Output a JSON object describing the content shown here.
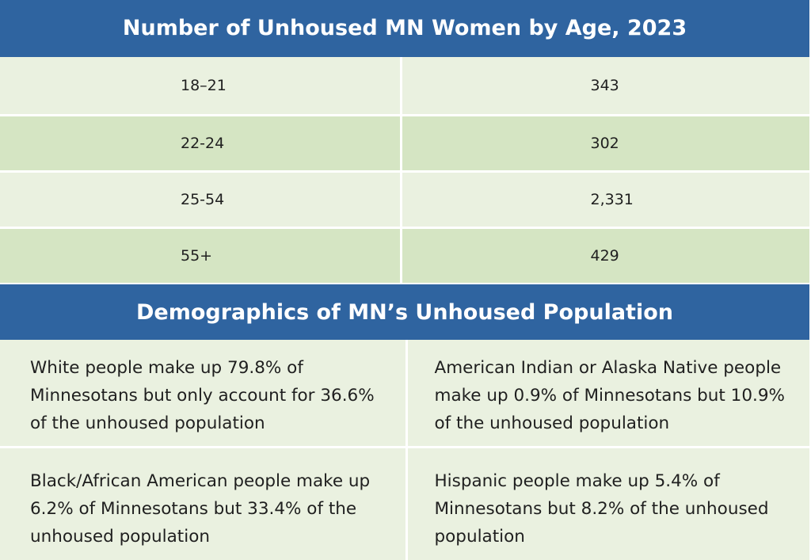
{
  "age_table": {
    "title": "Number of Unhoused MN Women by Age, 2023",
    "rows": [
      {
        "age": "18–21",
        "count": "343"
      },
      {
        "age": "22-24",
        "count": "302"
      },
      {
        "age": "25-54",
        "count": "2,331"
      },
      {
        "age": "55+",
        "count": "429"
      }
    ]
  },
  "demographics": {
    "title": "Demographics of MN’s Unhoused Population",
    "facts": [
      "White people make up 79.8% of Minnesotans but only account for 36.6% of the unhoused population",
      "American Indian or Alaska Native people make up 0.9% of Minnesotans but 10.9% of the unhoused population",
      "Black/African American people make up 6.2% of Minnesotans but 33.4% of the unhoused population",
      "Hispanic people make up 5.4% of Minnesotans but 8.2% of the unhoused population"
    ]
  },
  "colors": {
    "header_blue": "#2f64a0",
    "row_light": "#eaf1e0",
    "row_dark": "#d5e5c3"
  }
}
